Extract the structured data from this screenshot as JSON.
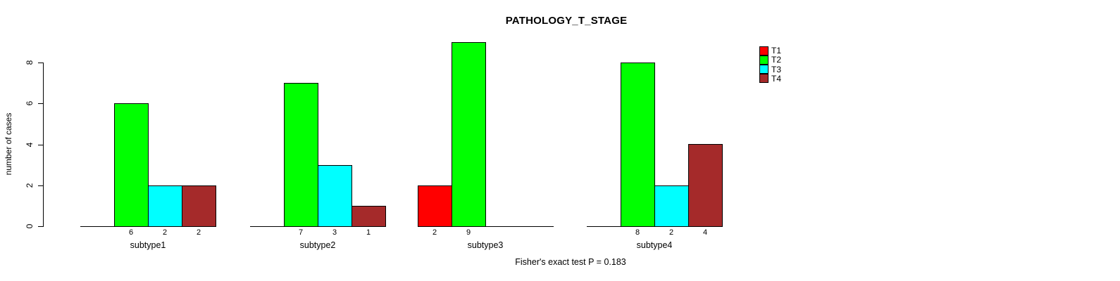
{
  "figure": {
    "title": "PATHOLOGY_T_STAGE",
    "ylabel": "number of cases",
    "footer": "Fisher's exact test P = 0.183"
  },
  "chart_data": {
    "type": "bar",
    "title": "PATHOLOGY_T_STAGE",
    "ylabel": "number of cases",
    "xlabel": "",
    "categories": [
      "subtype1",
      "subtype2",
      "subtype3",
      "subtype4"
    ],
    "series": [
      {
        "name": "T1",
        "color": "#FF0000",
        "values": [
          0,
          0,
          2,
          0
        ]
      },
      {
        "name": "T2",
        "color": "#00FF00",
        "values": [
          6,
          7,
          9,
          8
        ]
      },
      {
        "name": "T3",
        "color": "#00FFFF",
        "values": [
          2,
          3,
          0,
          2
        ]
      },
      {
        "name": "T4",
        "color": "#A52A2A",
        "values": [
          2,
          1,
          0,
          4
        ]
      }
    ],
    "yticks": [
      0,
      2,
      4,
      6,
      8
    ],
    "ylim": [
      0,
      9
    ],
    "grid": false,
    "legend_position": "top-right",
    "bar_value_labels": "value shown below axis under each nonzero bar",
    "annotation": "Fisher's exact test P = 0.183"
  }
}
